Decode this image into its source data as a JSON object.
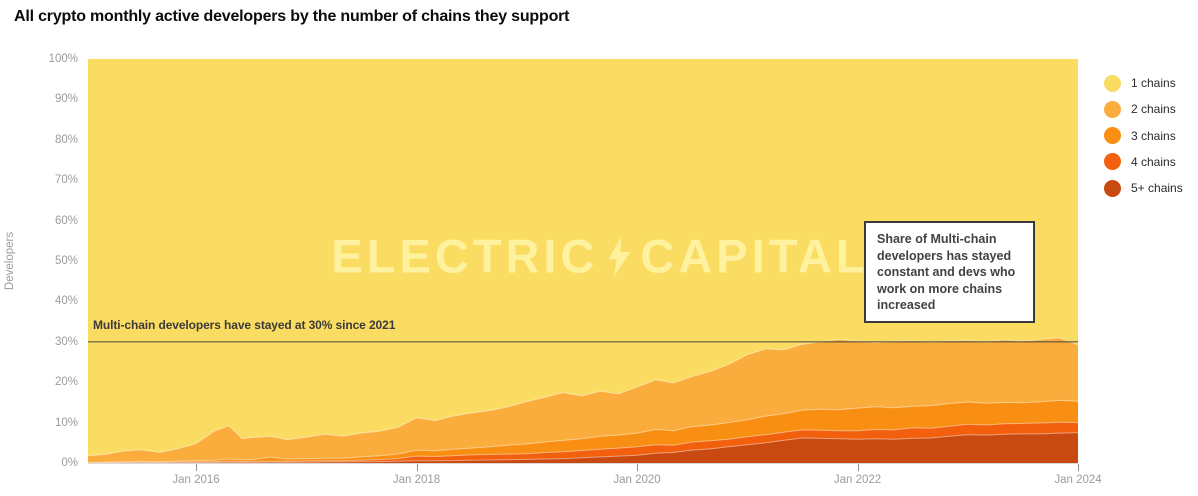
{
  "header": {
    "title": "All crypto monthly active developers by the number of chains they support"
  },
  "y_axis": {
    "label": "Developers"
  },
  "watermark": {
    "left_text": "ELECTRIC",
    "right_text": "CAPITAL",
    "icon": "lightning-bolt-icon"
  },
  "annotations": {
    "ref_line_label": "Multi-chain developers have stayed at 30% since 2021",
    "callout_text": "Share of Multi-chain developers has stayed constant and devs who work on more chains increased"
  },
  "legend": {
    "items": [
      {
        "label": "1 chains",
        "color": "#FBDC62"
      },
      {
        "label": "2 chains",
        "color": "#FAAD3C"
      },
      {
        "label": "3 chains",
        "color": "#F88F12"
      },
      {
        "label": "4 chains",
        "color": "#F3600D"
      },
      {
        "label": "5+ chains",
        "color": "#C84A10"
      }
    ]
  },
  "chart_data": {
    "type": "area",
    "stacked": true,
    "normalized_to_100pct": true,
    "title": "All crypto monthly active developers by the number of chains they support",
    "xlabel": "",
    "ylabel": "Developers",
    "xlim": [
      2015.02,
      2024.0
    ],
    "ylim": [
      0,
      100
    ],
    "grid": false,
    "legend_position": "right-top",
    "ref_line_pct": 30,
    "x_ticks": [
      {
        "year": 2016,
        "label": "Jan 2016"
      },
      {
        "year": 2018,
        "label": "Jan 2018"
      },
      {
        "year": 2020,
        "label": "Jan 2020"
      },
      {
        "year": 2022,
        "label": "Jan 2022"
      },
      {
        "year": 2024,
        "label": "Jan 2024"
      }
    ],
    "y_ticks": [
      {
        "pct": 0,
        "label": "0%"
      },
      {
        "pct": 10,
        "label": "10%"
      },
      {
        "pct": 20,
        "label": "20%"
      },
      {
        "pct": 30,
        "label": "30%"
      },
      {
        "pct": 40,
        "label": "40%"
      },
      {
        "pct": 50,
        "label": "50%"
      },
      {
        "pct": 60,
        "label": "60%"
      },
      {
        "pct": 70,
        "label": "70%"
      },
      {
        "pct": 80,
        "label": "80%"
      },
      {
        "pct": 90,
        "label": "90%"
      },
      {
        "pct": 100,
        "label": "100%"
      }
    ],
    "x_years": [
      2015.02,
      2015.17,
      2015.33,
      2015.5,
      2015.67,
      2015.83,
      2016,
      2016.17,
      2016.3,
      2016.42,
      2016.5,
      2016.67,
      2016.83,
      2017,
      2017.17,
      2017.33,
      2017.5,
      2017.67,
      2017.83,
      2018,
      2018.17,
      2018.33,
      2018.5,
      2018.67,
      2018.83,
      2019,
      2019.17,
      2019.33,
      2019.5,
      2019.67,
      2019.83,
      2020,
      2020.17,
      2020.33,
      2020.5,
      2020.67,
      2020.83,
      2021,
      2021.17,
      2021.33,
      2021.5,
      2021.67,
      2021.83,
      2022,
      2022.17,
      2022.33,
      2022.5,
      2022.67,
      2022.83,
      2023,
      2023.17,
      2023.33,
      2023.5,
      2023.67,
      2023.83,
      2024
    ],
    "series_note": "stack_top_pct is the cumulative share (%) measured from the chart bottom; bands stack bottom-to-top in the order 5+,4,3,2 chains; the '1 chains' band fills the remainder up to 100%.",
    "series": [
      {
        "name": "5+ chains",
        "color": "#C84A10",
        "stack_top_pct": [
          0.02,
          0.03,
          0.05,
          0.06,
          0.05,
          0.08,
          0.1,
          0.12,
          0.2,
          0.15,
          0.15,
          0.18,
          0.18,
          0.2,
          0.25,
          0.25,
          0.3,
          0.35,
          0.45,
          0.55,
          0.55,
          0.6,
          0.7,
          0.75,
          0.8,
          0.9,
          1.0,
          1.1,
          1.3,
          1.5,
          1.7,
          1.9,
          2.4,
          2.6,
          3.2,
          3.5,
          4.0,
          4.5,
          5.0,
          5.6,
          6.2,
          6.1,
          6.0,
          5.9,
          6.0,
          5.9,
          6.1,
          6.2,
          6.6,
          7.0,
          6.9,
          7.1,
          7.2,
          7.2,
          7.4,
          7.5
        ]
      },
      {
        "name": "4 chains",
        "color": "#F3600D",
        "stack_top_pct": [
          0.08,
          0.1,
          0.15,
          0.2,
          0.15,
          0.25,
          0.3,
          0.3,
          0.45,
          0.35,
          0.4,
          0.45,
          0.4,
          0.5,
          0.55,
          0.55,
          0.7,
          0.85,
          1.1,
          1.7,
          1.6,
          1.8,
          2.0,
          2.1,
          2.2,
          2.3,
          2.6,
          2.8,
          3.1,
          3.4,
          3.7,
          4.0,
          4.5,
          4.4,
          5.2,
          5.5,
          5.9,
          6.5,
          7.0,
          7.6,
          8.2,
          8.1,
          8.0,
          8.0,
          8.3,
          8.2,
          8.7,
          8.6,
          9.1,
          9.6,
          9.4,
          9.7,
          9.8,
          9.9,
          10.1,
          10.0
        ]
      },
      {
        "name": "3 chains",
        "color": "#F88F12",
        "stack_top_pct": [
          0.15,
          0.2,
          0.3,
          0.4,
          0.3,
          0.5,
          0.6,
          0.7,
          1.0,
          0.8,
          0.8,
          1.4,
          1.0,
          1.1,
          1.2,
          1.2,
          1.5,
          1.8,
          2.2,
          3.2,
          3.0,
          3.4,
          3.7,
          4.0,
          4.4,
          4.7,
          5.2,
          5.6,
          6.0,
          6.6,
          6.9,
          7.4,
          8.3,
          8.0,
          9.0,
          9.4,
          10.0,
          10.7,
          11.6,
          12.2,
          13.1,
          13.3,
          13.2,
          13.6,
          13.9,
          13.7,
          14.0,
          14.2,
          14.7,
          15.1,
          14.8,
          15.0,
          14.9,
          15.2,
          15.5,
          15.3
        ]
      },
      {
        "name": "2 chains",
        "color": "#FAAD3C",
        "stack_top_pct": [
          1.8,
          2.1,
          2.9,
          3.3,
          2.6,
          3.5,
          4.8,
          8.0,
          9.2,
          6.0,
          6.3,
          6.6,
          5.8,
          6.4,
          7.1,
          6.6,
          7.4,
          7.9,
          8.8,
          11.2,
          10.5,
          11.6,
          12.4,
          13.0,
          13.9,
          15.2,
          16.3,
          17.4,
          16.6,
          17.8,
          17.1,
          18.8,
          20.6,
          19.8,
          21.4,
          22.7,
          24.4,
          26.8,
          28.3,
          28.0,
          29.4,
          30.0,
          30.6,
          30.2,
          29.8,
          30.1,
          30.3,
          29.9,
          30.2,
          30.4,
          29.9,
          30.5,
          30.1,
          30.6,
          31.0,
          29.3
        ]
      },
      {
        "name": "1 chains",
        "color": "#FBDC62",
        "fills_to": 100
      }
    ]
  }
}
